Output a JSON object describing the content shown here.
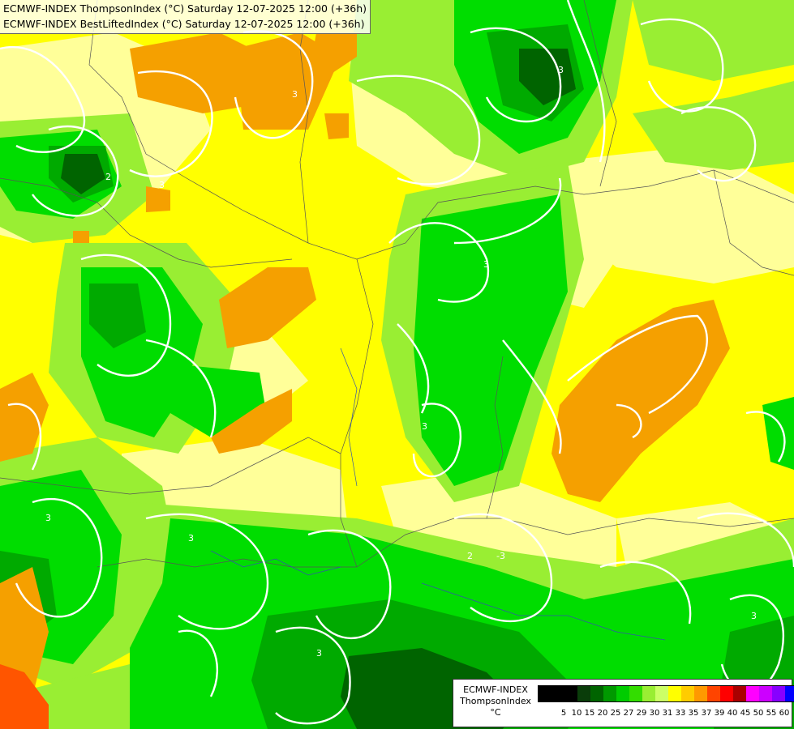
{
  "titles": {
    "line1": "ECMWF-INDEX ThompsonIndex (°C) Saturday 12-07-2025 12:00 (+36h)",
    "line2": "ECMWF-INDEX BestLiftedIndex (°C) Saturday 12-07-2025 12:00 (+36h)"
  },
  "legend": {
    "model": "ECMWF-INDEX",
    "parameter": "ThompsonIndex",
    "unit": "°C",
    "labels": [
      "5",
      "10",
      "15",
      "20",
      "25",
      "27",
      "29",
      "30",
      "31",
      "33",
      "35",
      "37",
      "39",
      "40",
      "45",
      "50",
      "55",
      "60"
    ],
    "colors": [
      "#000000",
      "#000000",
      "#000000",
      "#0a3d0a",
      "#006400",
      "#009900",
      "#00cc00",
      "#33dd00",
      "#99ee33",
      "#ccff66",
      "#ffff00",
      "#ffcc00",
      "#ff9900",
      "#ff4400",
      "#ff0000",
      "#aa0000",
      "#ff00ff",
      "#cc00ff",
      "#8800ff",
      "#0000ff"
    ]
  },
  "map": {
    "colors": {
      "background": "#ffff00",
      "pale_yellow": "#ffff99",
      "light_green": "#99ee33",
      "green": "#00dd00",
      "medium_green": "#00aa00",
      "dark_green": "#006400",
      "orange": "#f5a000",
      "red_orange": "#ff5500",
      "contour": "#ffffff",
      "border": "#555555",
      "river": "#3355aa"
    },
    "contour_labels": [
      "2",
      "3",
      "3",
      "3",
      "3",
      "3",
      "3",
      "3",
      "2",
      "-3",
      "3",
      "3"
    ]
  }
}
